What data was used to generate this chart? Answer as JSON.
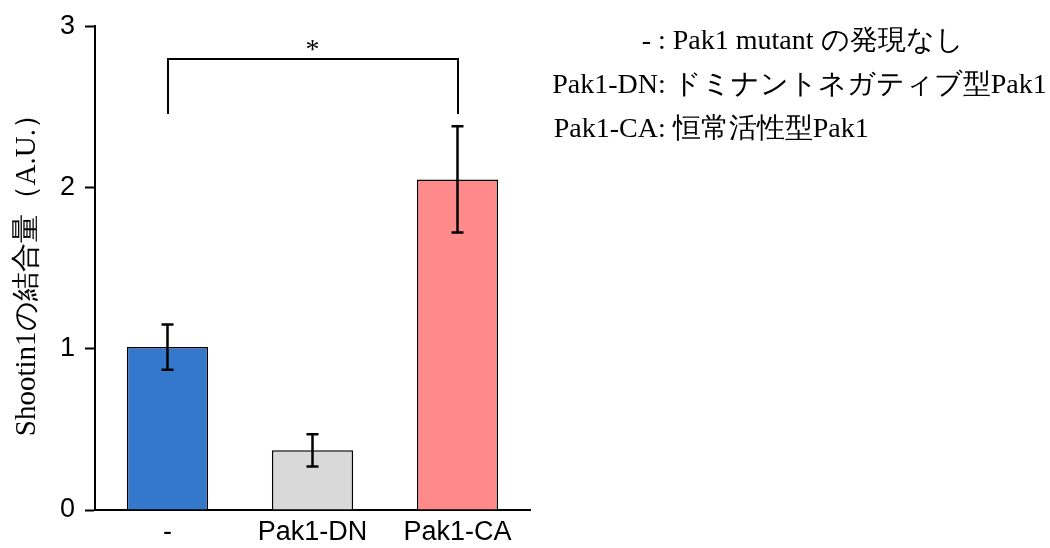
{
  "chart_data": {
    "type": "bar",
    "ylabel": "Shootin1の結合量（A.U.）",
    "categories": [
      "-",
      "Pak1-DN",
      "Pak1-CA"
    ],
    "values": [
      1.01,
      0.37,
      2.05
    ],
    "errors": [
      0.14,
      0.1,
      0.33
    ],
    "colors": [
      "#3478cc",
      "#d9d9d9",
      "#ff8a8a"
    ],
    "ylim": [
      0,
      3
    ],
    "yticks": [
      0,
      1,
      2,
      3
    ],
    "annotations": [
      "*",
      "- : Pak1 mutant の発現なし",
      "Pak1-DN: ドミナントネガティブ型Pak1",
      "Pak1-CA: 恒常活性型Pak1"
    ]
  }
}
